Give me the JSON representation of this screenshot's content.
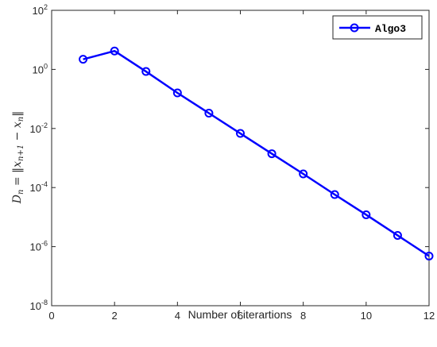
{
  "chart_data": {
    "type": "line",
    "xlabel": "Number of iterartions",
    "ylabel": "D_n = ||x_{n+1} - x_n||",
    "x_axis": {
      "scale": "linear",
      "range": [
        0,
        12
      ],
      "ticks": [
        0,
        2,
        4,
        6,
        8,
        10,
        12
      ]
    },
    "y_axis": {
      "scale": "log",
      "range": [
        1e-08,
        100
      ],
      "ticks": [
        {
          "base": "10",
          "exp": "2",
          "value": 100
        },
        {
          "base": "10",
          "exp": "0",
          "value": 1
        },
        {
          "base": "10",
          "exp": "-2",
          "value": 0.01
        },
        {
          "base": "10",
          "exp": "-4",
          "value": 0.0001
        },
        {
          "base": "10",
          "exp": "-6",
          "value": 1e-06
        },
        {
          "base": "10",
          "exp": "-8",
          "value": 1e-08
        }
      ]
    },
    "legend": {
      "position": "top-right"
    },
    "grid": false,
    "series": [
      {
        "name": "Algo3",
        "color": "#0000ff",
        "marker": "circle",
        "x": [
          1,
          2,
          3,
          4,
          5,
          6,
          7,
          8,
          9,
          10,
          11,
          12
        ],
        "y": [
          2.2,
          4.2,
          0.85,
          0.16,
          0.033,
          0.0068,
          0.0014,
          0.00029,
          5.8e-05,
          1.2e-05,
          2.4e-06,
          4.8e-07
        ]
      }
    ]
  }
}
